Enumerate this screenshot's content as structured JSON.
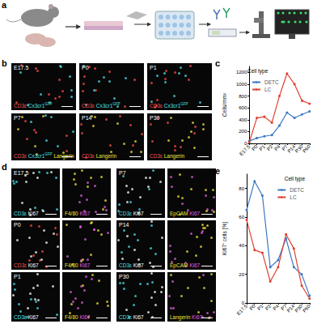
{
  "panels": {
    "a": {
      "label": "a"
    },
    "b": {
      "label": "b",
      "rows": [
        [
          {
            "time": "E17.5",
            "channels": [
              {
                "text": "CD3ε",
                "color": "#ff4b4b"
              },
              {
                "text": "Cx3cr1",
                "sup": "GFP",
                "color": "#4fe0e8"
              }
            ]
          },
          {
            "time": "P0",
            "channels": [
              {
                "text": "CD3ε",
                "color": "#ff4b4b"
              },
              {
                "text": "Cx3cr1",
                "sup": "GFP",
                "color": "#4fe0e8"
              }
            ]
          },
          {
            "time": "P1",
            "channels": [
              {
                "text": "CD3ε",
                "color": "#ff4b4b"
              },
              {
                "text": "Cx3cr1",
                "sup": "GFP",
                "color": "#4fe0e8"
              }
            ]
          }
        ],
        [
          {
            "time": "P7",
            "channels": [
              {
                "text": "CD3ε",
                "color": "#ff4b4b"
              },
              {
                "text": "Cx3cr1",
                "sup": "GFP",
                "color": "#4fe0e8"
              },
              {
                "text": "Langerin",
                "color": "#f2e33a"
              }
            ]
          },
          {
            "time": "P14",
            "channels": [
              {
                "text": "CD3ε",
                "color": "#ff4b4b"
              },
              {
                "text": "Langerin",
                "color": "#f2e33a"
              }
            ]
          },
          {
            "time": "P30",
            "channels": [
              {
                "text": "CD3ε",
                "color": "#ff4b4b"
              },
              {
                "text": "Langerin",
                "color": "#f2e33a"
              }
            ]
          }
        ]
      ]
    },
    "d": {
      "label": "d",
      "rows": [
        [
          {
            "time": "E17.5",
            "channels": [
              {
                "text": "CD3ε",
                "color": "#4fe0e8"
              },
              {
                "text": "Ki67",
                "color": "#ffffff"
              }
            ]
          },
          {
            "time": null,
            "channels": [
              {
                "text": "F4/80",
                "color": "#f2e33a"
              },
              {
                "text": "Ki67",
                "color": "#e060e0"
              }
            ]
          },
          {
            "time": "P7",
            "channels": [
              {
                "text": "CD3ε",
                "color": "#4fe0e8"
              },
              {
                "text": "Ki67",
                "color": "#ffffff"
              }
            ]
          },
          {
            "time": null,
            "channels": [
              {
                "text": "EpCAM",
                "color": "#f2e33a"
              },
              {
                "text": "Ki67",
                "color": "#e060e0"
              }
            ]
          }
        ],
        [
          {
            "time": "P0",
            "channels": [
              {
                "text": "CD3ε",
                "color": "#ff4b4b"
              },
              {
                "text": "Ki67",
                "color": "#ffffff"
              }
            ]
          },
          {
            "time": null,
            "channels": [
              {
                "text": "F4/80",
                "color": "#f2e33a"
              },
              {
                "text": "Ki67",
                "color": "#e060e0"
              }
            ]
          },
          {
            "time": "P14",
            "channels": [
              {
                "text": "CD3ε",
                "color": "#4fe0e8"
              },
              {
                "text": "Ki67",
                "color": "#ffffff"
              }
            ]
          },
          {
            "time": null,
            "channels": [
              {
                "text": "EpCAM",
                "color": "#f2e33a"
              },
              {
                "text": "Ki67",
                "color": "#e060e0"
              }
            ]
          }
        ],
        [
          {
            "time": "P1",
            "channels": [
              {
                "text": "CD3ε",
                "color": "#4fe0e8"
              },
              {
                "text": "Ki67",
                "color": "#ffffff"
              }
            ]
          },
          {
            "time": null,
            "channels": [
              {
                "text": "F4/80",
                "color": "#f2e33a"
              },
              {
                "text": "Ki67",
                "color": "#e060e0"
              }
            ]
          },
          {
            "time": "P30",
            "channels": [
              {
                "text": "CD3ε",
                "color": "#4fe0e8"
              },
              {
                "text": "Ki67",
                "color": "#ffffff"
              }
            ]
          },
          {
            "time": null,
            "channels": [
              {
                "text": "Langerin",
                "color": "#f2e33a"
              },
              {
                "text": "Ki67",
                "color": "#e060e0"
              }
            ]
          }
        ]
      ]
    }
  },
  "chart_data": [
    {
      "type": "line",
      "title": "c",
      "y_label": "Cells/mm²",
      "legend_title": "Cell type",
      "legend": "upper left",
      "categories": [
        "E17.5",
        "P0",
        "P1",
        "P2",
        "P4",
        "P7",
        "P14",
        "P30",
        "P60"
      ],
      "ylim": [
        0,
        1300
      ],
      "yticks": [
        0,
        200,
        400,
        600,
        800,
        1000,
        1200
      ],
      "grid": false,
      "series": [
        {
          "name": "DETC",
          "color": "#3a78c2",
          "marker": "circle",
          "values": [
            40,
            90,
            120,
            140,
            300,
            520,
            430,
            490,
            540
          ]
        },
        {
          "name": "LC",
          "color": "#e0402f",
          "marker": "circle",
          "values": [
            20,
            430,
            450,
            350,
            800,
            1180,
            1000,
            720,
            670
          ]
        }
      ]
    },
    {
      "type": "line",
      "title": "e",
      "y_label": "Ki67⁺ cells [%]",
      "legend_title": "Cell type",
      "legend": "upper right",
      "categories": [
        "E17.5",
        "P0",
        "P1",
        "P2",
        "P4",
        "P7",
        "P14",
        "P30",
        "P60"
      ],
      "ylim": [
        0,
        90
      ],
      "yticks": [
        0,
        20,
        40,
        60,
        80
      ],
      "grid": false,
      "series": [
        {
          "name": "DETC",
          "color": "#3a78c2",
          "marker": "circle",
          "values": [
            65,
            85,
            75,
            25,
            30,
            45,
            25,
            20,
            5
          ]
        },
        {
          "name": "LC",
          "color": "#e0402f",
          "marker": "circle",
          "values": [
            58,
            37,
            35,
            15,
            25,
            48,
            38,
            12,
            3
          ]
        }
      ]
    }
  ]
}
